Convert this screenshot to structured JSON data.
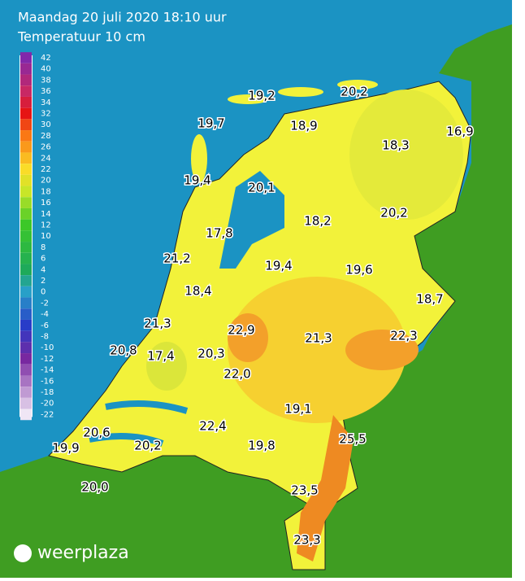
{
  "header": {
    "title": "Maandag 20 juli 2020 18:10 uur",
    "subtitle": "Temperatuur 10 cm"
  },
  "legend": {
    "ticks": [
      42,
      40,
      38,
      36,
      34,
      32,
      30,
      28,
      26,
      24,
      22,
      20,
      18,
      16,
      14,
      12,
      10,
      8,
      6,
      4,
      2,
      0,
      -2,
      -4,
      -6,
      -8,
      -10,
      -12,
      -14,
      -16,
      -18,
      -20,
      -22
    ]
  },
  "stations": [
    "19,2",
    "20,2",
    "19,7",
    "18,9",
    "16,9",
    "18,3",
    "19,4",
    "20,1",
    "18,2",
    "20,2",
    "17,8",
    "21,2",
    "19,4",
    "19,6",
    "18,4",
    "18,7",
    "21,3",
    "22,9",
    "21,3",
    "22,3",
    "20,8",
    "17,4",
    "20,3",
    "22,0",
    "19,1",
    "22,4",
    "25,5",
    "20,6",
    "19,9",
    "20,2",
    "19,8",
    "20,0",
    "23,5",
    "23,3"
  ],
  "logo": "weerplaza"
}
